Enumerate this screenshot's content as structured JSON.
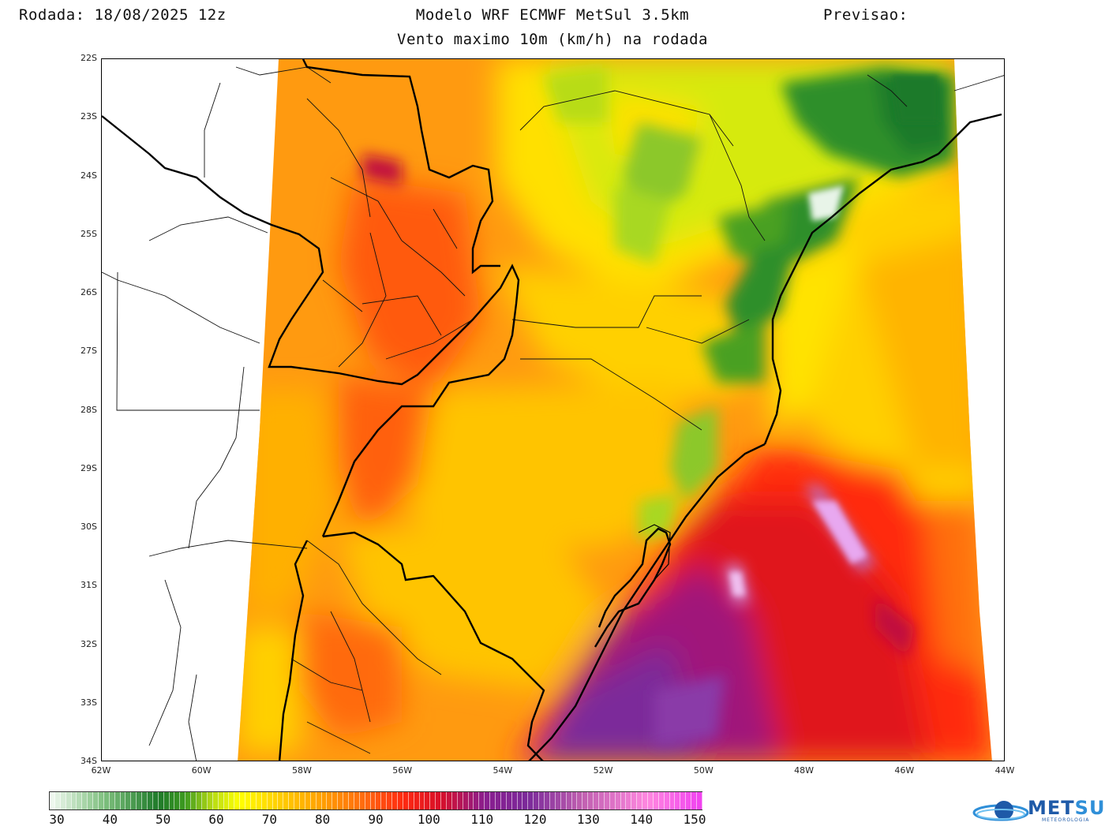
{
  "header": {
    "run": "Rodada: 18/08/2025 12z",
    "model": "Modelo WRF ECMWF MetSul 3.5km",
    "forecast": "Previsao:",
    "subtitle": "Vento maximo 10m (km/h) na rodada"
  },
  "map": {
    "lat_labels": [
      "22S",
      "23S",
      "24S",
      "25S",
      "26S",
      "27S",
      "28S",
      "29S",
      "30S",
      "31S",
      "32S",
      "33S",
      "34S"
    ],
    "lon_labels": [
      "62W",
      "60W",
      "58W",
      "56W",
      "54W",
      "52W",
      "50W",
      "48W",
      "46W",
      "44W"
    ],
    "lon_range": [
      -62,
      -44
    ],
    "lat_range": [
      -34,
      -22
    ]
  },
  "colorbar": {
    "labels": [
      "30",
      "40",
      "50",
      "60",
      "70",
      "80",
      "90",
      "100",
      "110",
      "120",
      "130",
      "140",
      "150"
    ],
    "unit": "km/h",
    "stops": [
      {
        "value": 30,
        "color": "#f4fbf4"
      },
      {
        "value": 40,
        "color": "#7fc07f"
      },
      {
        "value": 50,
        "color": "#1f7a2a"
      },
      {
        "value": 55,
        "color": "#3d9a1f"
      },
      {
        "value": 60,
        "color": "#b8dc14"
      },
      {
        "value": 65,
        "color": "#ffff00"
      },
      {
        "value": 72,
        "color": "#ffd000"
      },
      {
        "value": 80,
        "color": "#ffa000"
      },
      {
        "value": 88,
        "color": "#ff6a10"
      },
      {
        "value": 95,
        "color": "#ff2a10"
      },
      {
        "value": 102,
        "color": "#d80f2a"
      },
      {
        "value": 110,
        "color": "#8a1e8f"
      },
      {
        "value": 118,
        "color": "#7b2a9a"
      },
      {
        "value": 128,
        "color": "#c060b0"
      },
      {
        "value": 140,
        "color": "#ff88e0"
      },
      {
        "value": 150,
        "color": "#f040f0"
      }
    ]
  },
  "logo": {
    "name_a": "MET",
    "name_b": "SUL",
    "tagline": "METEOROLOGIA"
  }
}
